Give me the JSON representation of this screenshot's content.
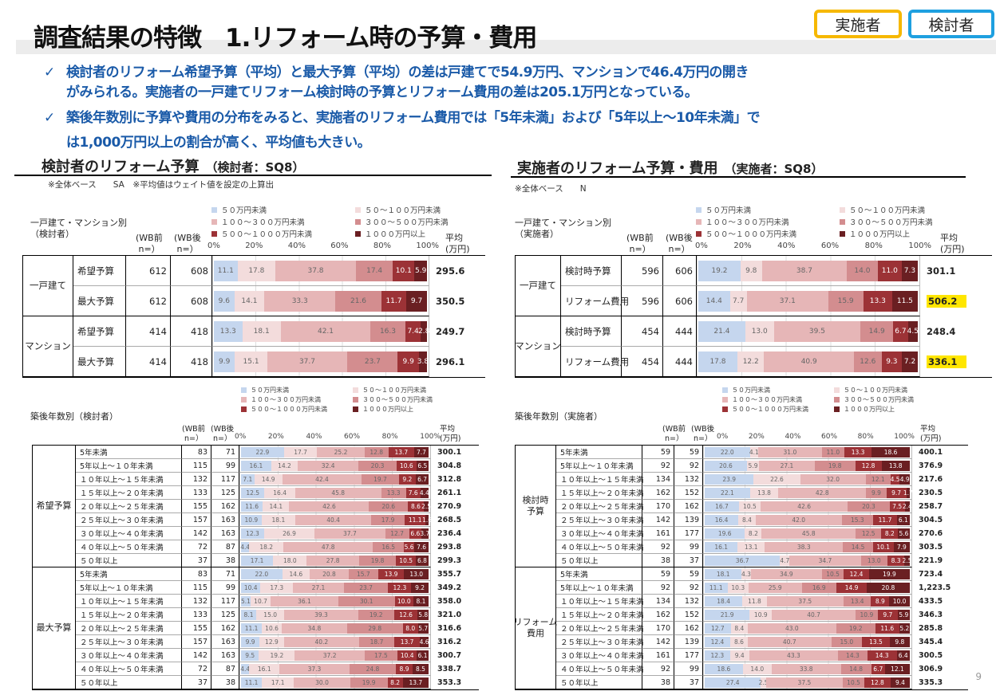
{
  "title": "調査結果の特徴　1.リフォーム時の予算・費用",
  "badges": [
    "実施者",
    "検討者"
  ],
  "check": "✓",
  "bullets": [
    [
      "検討者のリフォーム希望予算（平均）と最大予算（平均）の差は戸建てで54.9万円、マンションで46.4万円の開き",
      "がみられる。実施者の一戸建てリフォーム検討時の予算とリフォーム費用の差は205.1万円となっている。"
    ],
    [
      "築後年数別に予算や費用の分布をみると、実施者のリフォーム費用では「5年未満」および「5年以上～10年未満」で",
      "は1,000万円以上の割合が高く、平均値も大きい。"
    ]
  ],
  "colors": [
    "#c5d6ee",
    "#f3dcdc",
    "#e6b6b7",
    "#d38d8f",
    "#9c3236",
    "#6a1f22"
  ],
  "legend": [
    "５０万円未満",
    "５０～１００万円未満",
    "１００～３００万円未満",
    "３００～５００万円未満",
    "５００～１０００万円未満",
    "１０００万円以上"
  ],
  "ticks": [
    "0%",
    "20%",
    "40%",
    "60%",
    "80%",
    "100%"
  ],
  "hdr": {
    "wb_before": "(WB前\n n=）",
    "wb_after": "(WB後\n n=）",
    "avg": "平均\n(万円)"
  },
  "left": {
    "heading": "検討者のリフォーム予算",
    "sub": "（検討者：SQ8）",
    "note": "※全体ベース　　SA　※平均値はウェイト値を設定の上算出",
    "top_label": "一戸建て・マンション別\n（検討者）",
    "top": [
      {
        "group": "一戸建て",
        "rows": [
          {
            "item": "希望予算",
            "n1": "612",
            "n2": "608",
            "v": [
              11.1,
              17.8,
              37.8,
              17.4,
              10.1,
              5.9
            ],
            "avg": "295.6"
          },
          {
            "item": "最大予算",
            "n1": "612",
            "n2": "608",
            "v": [
              9.6,
              14.1,
              33.3,
              21.6,
              11.7,
              9.7
            ],
            "avg": "350.5"
          }
        ]
      },
      {
        "group": "マンション",
        "rows": [
          {
            "item": "希望予算",
            "n1": "414",
            "n2": "418",
            "v": [
              13.3,
              18.1,
              42.1,
              16.3,
              7.4,
              2.8
            ],
            "avg": "249.7"
          },
          {
            "item": "最大予算",
            "n1": "414",
            "n2": "418",
            "v": [
              9.9,
              15.1,
              37.7,
              23.7,
              9.9,
              3.8
            ],
            "avg": "296.1"
          }
        ]
      }
    ],
    "bottom_label": "築後年数別（検討者）",
    "bottom": [
      {
        "group": "希望予算",
        "rows": [
          {
            "item": "5年未満",
            "n1": "83",
            "n2": "71",
            "v": [
              22.9,
              17.7,
              25.2,
              12.8,
              13.7,
              7.7
            ],
            "avg": "300.1"
          },
          {
            "item": "5年以上～１０年未満",
            "n1": "115",
            "n2": "99",
            "v": [
              16.1,
              14.2,
              32.4,
              20.3,
              10.6,
              6.5
            ],
            "avg": "304.8"
          },
          {
            "item": "１０年以上～１５年未満",
            "n1": "132",
            "n2": "117",
            "v": [
              7.1,
              14.9,
              42.4,
              19.7,
              9.2,
              6.7
            ],
            "avg": "312.8"
          },
          {
            "item": "１５年以上～２０年未満",
            "n1": "133",
            "n2": "125",
            "v": [
              12.5,
              16.4,
              45.8,
              13.3,
              7.6,
              4.4
            ],
            "avg": "261.1"
          },
          {
            "item": "２０年以上～２５年未満",
            "n1": "155",
            "n2": "162",
            "v": [
              11.6,
              14.1,
              42.6,
              20.6,
              8.6,
              2.5
            ],
            "avg": "270.9"
          },
          {
            "item": "２５年以上～３０年未満",
            "n1": "157",
            "n2": "163",
            "v": [
              10.9,
              18.1,
              40.4,
              17.9,
              11.1,
              1.6
            ],
            "avg": "268.5"
          },
          {
            "item": "３０年以上～４０年未満",
            "n1": "142",
            "n2": "163",
            "v": [
              12.3,
              26.9,
              37.7,
              12.7,
              6.6,
              3.7
            ],
            "avg": "236.4"
          },
          {
            "item": "４０年以上～５０年未満",
            "n1": "72",
            "n2": "87",
            "v": [
              4.4,
              18.2,
              47.8,
              16.5,
              5.6,
              7.6
            ],
            "avg": "293.8"
          },
          {
            "item": "５０年以上",
            "n1": "37",
            "n2": "38",
            "v": [
              17.1,
              18.0,
              27.8,
              19.8,
              10.5,
              6.8
            ],
            "avg": "299.3"
          }
        ]
      },
      {
        "group": "最大予算",
        "rows": [
          {
            "item": "5年未満",
            "n1": "83",
            "n2": "71",
            "v": [
              22.0,
              14.6,
              20.8,
              15.7,
              13.9,
              13.0
            ],
            "avg": "355.7"
          },
          {
            "item": "5年以上～１０年未満",
            "n1": "115",
            "n2": "99",
            "v": [
              10.4,
              17.3,
              27.1,
              23.7,
              12.3,
              9.2
            ],
            "avg": "349.2"
          },
          {
            "item": "１０年以上～１５年未満",
            "n1": "132",
            "n2": "117",
            "v": [
              5.1,
              10.7,
              36.1,
              30.1,
              10.0,
              8.1
            ],
            "avg": "358.0"
          },
          {
            "item": "１５年以上～２０年未満",
            "n1": "133",
            "n2": "125",
            "v": [
              8.1,
              15.0,
              39.3,
              19.2,
              12.6,
              5.8
            ],
            "avg": "321.0"
          },
          {
            "item": "２０年以上～２５年未満",
            "n1": "155",
            "n2": "162",
            "v": [
              11.1,
              10.6,
              34.8,
              29.8,
              8.0,
              5.7
            ],
            "avg": "316.6"
          },
          {
            "item": "２５年以上～３０年未満",
            "n1": "157",
            "n2": "163",
            "v": [
              9.9,
              12.9,
              40.2,
              18.7,
              13.7,
              4.6
            ],
            "avg": "316.2"
          },
          {
            "item": "３０年以上～４０年未満",
            "n1": "142",
            "n2": "163",
            "v": [
              9.5,
              19.2,
              37.2,
              17.5,
              10.4,
              6.1
            ],
            "avg": "300.7"
          },
          {
            "item": "４０年以上～５０年未満",
            "n1": "72",
            "n2": "87",
            "v": [
              4.4,
              16.1,
              37.3,
              24.8,
              8.9,
              8.5
            ],
            "avg": "338.7"
          },
          {
            "item": "５０年以上",
            "n1": "37",
            "n2": "38",
            "v": [
              11.1,
              17.1,
              30.0,
              19.9,
              8.2,
              13.7
            ],
            "avg": "353.3"
          }
        ]
      }
    ]
  },
  "right": {
    "heading": "実施者のリフォーム予算・費用",
    "sub": "（実施者：SQ8）",
    "note": "※全体ベース　　N",
    "top_label": "一戸建て・マンション別\n（実施者）",
    "top": [
      {
        "group": "一戸建て",
        "rows": [
          {
            "item": "検討時予算",
            "n1": "596",
            "n2": "606",
            "v": [
              19.2,
              9.8,
              38.7,
              14.0,
              11.0,
              7.3
            ],
            "avg": "301.1"
          },
          {
            "item": "リフォーム費用",
            "n1": "596",
            "n2": "606",
            "v": [
              14.4,
              7.7,
              37.1,
              15.9,
              13.3,
              11.5
            ],
            "avg": "506.2",
            "hl": true
          }
        ]
      },
      {
        "group": "マンション",
        "rows": [
          {
            "item": "検討時予算",
            "n1": "454",
            "n2": "444",
            "v": [
              21.4,
              13.0,
              39.5,
              14.9,
              6.7,
              4.5
            ],
            "avg": "248.4"
          },
          {
            "item": "リフォーム費用",
            "n1": "454",
            "n2": "444",
            "v": [
              17.8,
              12.2,
              40.9,
              12.6,
              9.3,
              7.2
            ],
            "avg": "336.1",
            "hl": true
          }
        ]
      }
    ],
    "bottom_label": "築後年数別（実施者）",
    "bottom": [
      {
        "group": "検討時\n予算",
        "rows": [
          {
            "item": "5年未満",
            "n1": "59",
            "n2": "59",
            "v": [
              22.0,
              4.1,
              31.0,
              11.0,
              13.3,
              18.6
            ],
            "avg": "400.1"
          },
          {
            "item": "5年以上～１０年未満",
            "n1": "92",
            "n2": "92",
            "v": [
              20.6,
              5.9,
              27.1,
              19.8,
              12.8,
              13.8
            ],
            "avg": "376.9"
          },
          {
            "item": "１０年以上～１５年未満",
            "n1": "134",
            "n2": "132",
            "v": [
              23.9,
              22.6,
              32.0,
              12.1,
              4.5,
              4.9
            ],
            "avg": "217.6"
          },
          {
            "item": "１５年以上～２０年未満",
            "n1": "162",
            "n2": "152",
            "v": [
              22.1,
              13.8,
              42.8,
              9.9,
              9.7,
              1.7
            ],
            "avg": "230.5"
          },
          {
            "item": "２０年以上～２５年未満",
            "n1": "170",
            "n2": "162",
            "v": [
              16.7,
              10.5,
              42.6,
              20.3,
              7.5,
              2.4
            ],
            "avg": "258.7"
          },
          {
            "item": "２５年以上～３０年未満",
            "n1": "142",
            "n2": "139",
            "v": [
              16.4,
              8.4,
              42.0,
              15.3,
              11.7,
              6.1
            ],
            "avg": "304.5"
          },
          {
            "item": "３０年以上～４０年未満",
            "n1": "161",
            "n2": "177",
            "v": [
              19.6,
              8.2,
              45.8,
              12.5,
              8.2,
              5.6
            ],
            "avg": "270.6"
          },
          {
            "item": "４０年以上～５０年未満",
            "n1": "92",
            "n2": "99",
            "v": [
              16.1,
              13.1,
              38.3,
              14.5,
              10.1,
              7.9
            ],
            "avg": "303.5"
          },
          {
            "item": "５０年以上",
            "n1": "38",
            "n2": "37",
            "v": [
              36.7,
              4.7,
              34.7,
              13.0,
              8.3,
              2.5
            ],
            "avg": "221.9"
          }
        ]
      },
      {
        "group": "リフォーム\n費用",
        "rows": [
          {
            "item": "5年未満",
            "n1": "59",
            "n2": "59",
            "v": [
              18.1,
              4.3,
              34.9,
              10.5,
              12.4,
              19.9
            ],
            "avg": "723.4"
          },
          {
            "item": "5年以上～１０年未満",
            "n1": "92",
            "n2": "92",
            "v": [
              11.1,
              10.3,
              25.9,
              16.9,
              14.9,
              20.8
            ],
            "avg": "1,223.5"
          },
          {
            "item": "１０年以上～１５年未満",
            "n1": "134",
            "n2": "132",
            "v": [
              18.4,
              11.8,
              37.5,
              13.4,
              8.9,
              10.0
            ],
            "avg": "433.5"
          },
          {
            "item": "１５年以上～２０年未満",
            "n1": "162",
            "n2": "152",
            "v": [
              21.9,
              10.9,
              40.7,
              10.9,
              9.7,
              5.9
            ],
            "avg": "346.3"
          },
          {
            "item": "２０年以上～２５年未満",
            "n1": "170",
            "n2": "162",
            "v": [
              12.7,
              8.4,
              43.0,
              19.2,
              11.6,
              5.2
            ],
            "avg": "285.8"
          },
          {
            "item": "２５年以上～３０年未満",
            "n1": "142",
            "n2": "139",
            "v": [
              12.4,
              8.6,
              40.7,
              15.0,
              13.5,
              9.8
            ],
            "avg": "345.4"
          },
          {
            "item": "３０年以上～４０年未満",
            "n1": "161",
            "n2": "177",
            "v": [
              12.3,
              9.4,
              43.3,
              14.3,
              14.3,
              6.4
            ],
            "avg": "300.5"
          },
          {
            "item": "４０年以上～５０年未満",
            "n1": "92",
            "n2": "99",
            "v": [
              18.6,
              14.0,
              33.8,
              14.8,
              6.7,
              12.1
            ],
            "avg": "306.9"
          },
          {
            "item": "５０年以上",
            "n1": "38",
            "n2": "37",
            "v": [
              27.4,
              2.5,
              37.5,
              10.5,
              12.8,
              9.4
            ],
            "avg": "335.3"
          }
        ]
      }
    ]
  },
  "page_number": "9"
}
